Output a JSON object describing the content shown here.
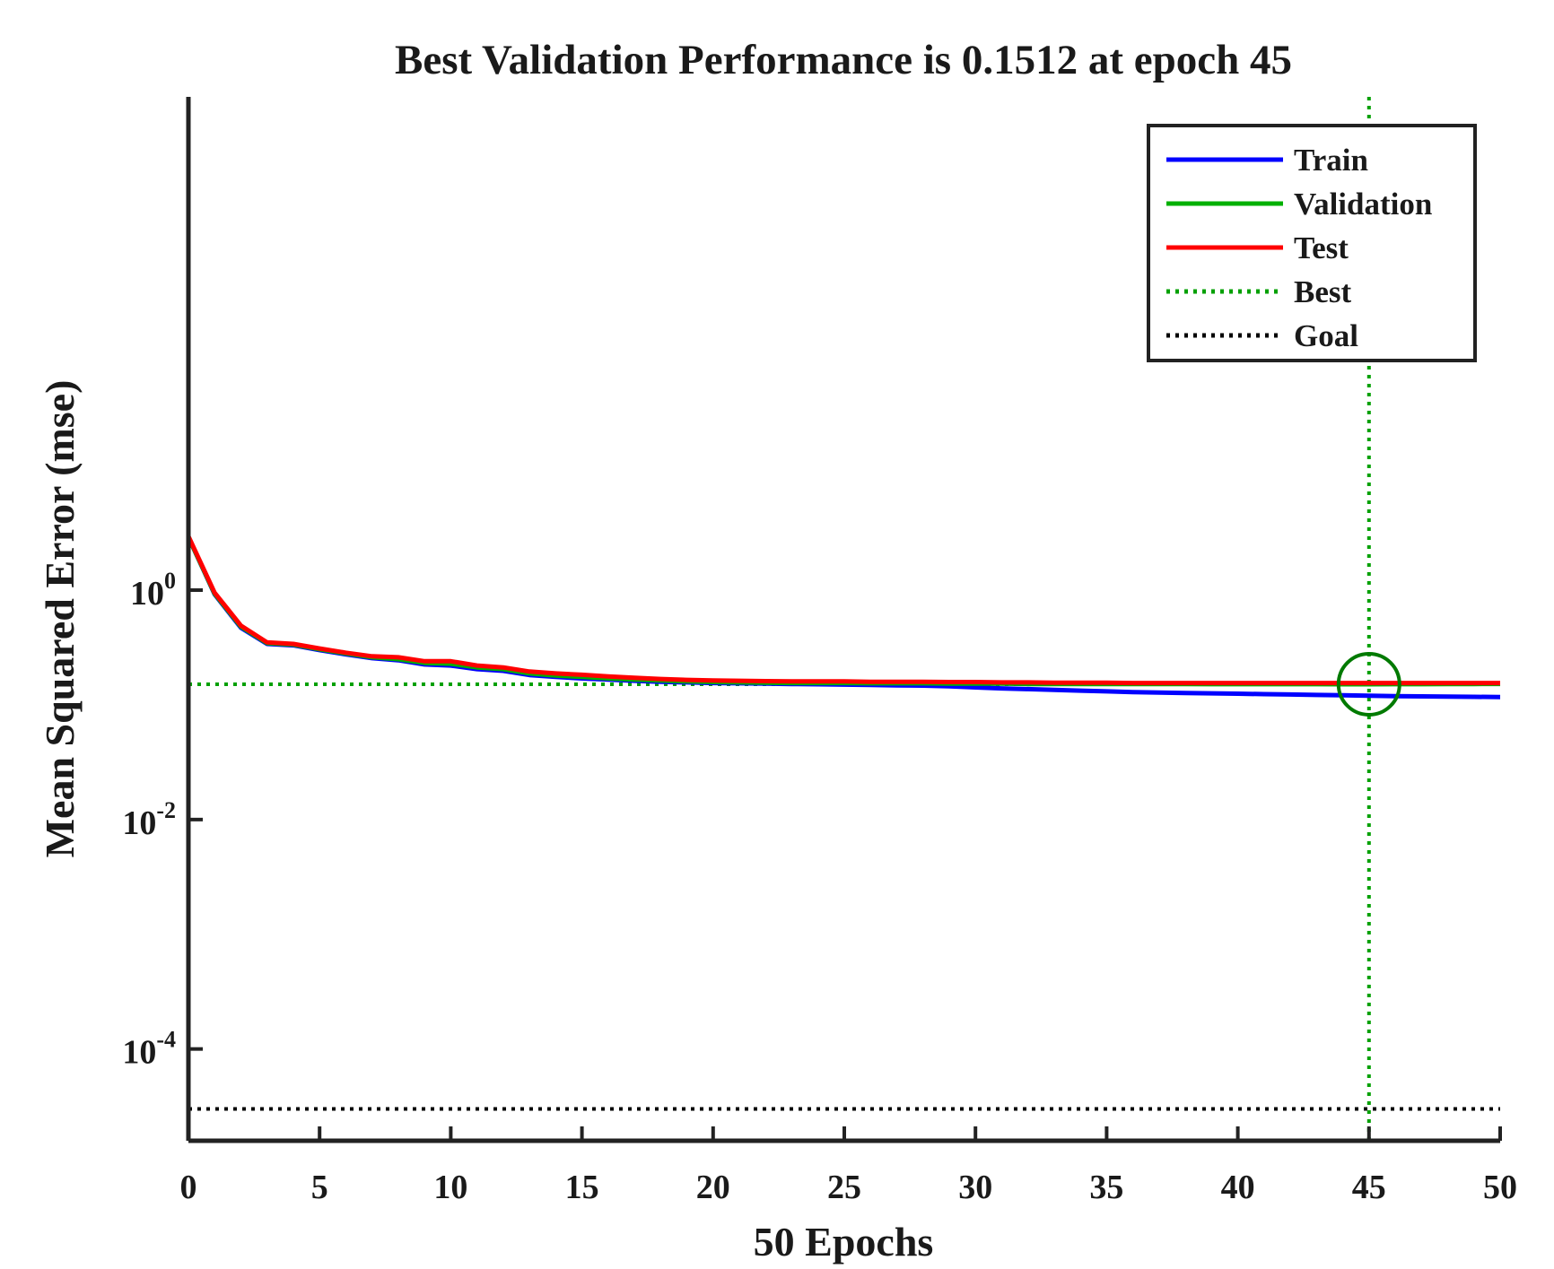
{
  "chart_data": {
    "type": "line",
    "title": "Best Validation Performance is 0.1512 at epoch 45",
    "xlabel": "50 Epochs",
    "ylabel": "Mean Squared Error  (mse)",
    "xlim": [
      0,
      50
    ],
    "ylim_log10": [
      -4.8,
      4.3
    ],
    "yscale": "log",
    "x_ticks": [
      0,
      5,
      10,
      15,
      20,
      25,
      30,
      35,
      40,
      45,
      50
    ],
    "x_tick_labels": [
      "0",
      "5",
      "10",
      "15",
      "20",
      "25",
      "30",
      "35",
      "40",
      "45",
      "50"
    ],
    "y_ticks": [
      {
        "base": "10",
        "exp": "0",
        "value": 1
      },
      {
        "base": "10",
        "exp": "-2",
        "value": 0.01
      },
      {
        "base": "10",
        "exp": "-4",
        "value": 0.0001
      }
    ],
    "series": [
      {
        "name": "Train",
        "color": "#0000ff",
        "style": "solid",
        "x": [
          0,
          1,
          2,
          3,
          4,
          5,
          6,
          7,
          8,
          9,
          10,
          11,
          12,
          13,
          14,
          15,
          16,
          17,
          18,
          19,
          20,
          21,
          22,
          23,
          24,
          25,
          26,
          27,
          28,
          29,
          30,
          31,
          32,
          33,
          34,
          35,
          36,
          37,
          38,
          39,
          40,
          41,
          42,
          43,
          44,
          45,
          46,
          47,
          48,
          49,
          50
        ],
        "y": [
          2.9,
          0.92,
          0.47,
          0.34,
          0.33,
          0.3,
          0.275,
          0.255,
          0.245,
          0.225,
          0.22,
          0.205,
          0.198,
          0.182,
          0.175,
          0.17,
          0.166,
          0.162,
          0.159,
          0.157,
          0.155,
          0.154,
          0.153,
          0.152,
          0.151,
          0.15,
          0.149,
          0.148,
          0.147,
          0.145,
          0.142,
          0.139,
          0.137,
          0.135,
          0.133,
          0.131,
          0.129,
          0.128,
          0.127,
          0.126,
          0.125,
          0.124,
          0.123,
          0.122,
          0.121,
          0.12,
          0.119,
          0.1185,
          0.118,
          0.1175,
          0.117
        ]
      },
      {
        "name": "Validation",
        "color": "#00b000",
        "style": "solid",
        "x": [
          0,
          1,
          2,
          3,
          4,
          5,
          6,
          7,
          8,
          9,
          10,
          11,
          12,
          13,
          14,
          15,
          16,
          17,
          18,
          19,
          20,
          21,
          22,
          23,
          24,
          25,
          26,
          27,
          28,
          29,
          30,
          31,
          32,
          33,
          34,
          35,
          36,
          37,
          38,
          39,
          40,
          41,
          42,
          43,
          44,
          45,
          46,
          47,
          48,
          49,
          50
        ],
        "y": [
          2.9,
          0.93,
          0.48,
          0.345,
          0.335,
          0.305,
          0.28,
          0.26,
          0.25,
          0.232,
          0.228,
          0.212,
          0.205,
          0.188,
          0.18,
          0.175,
          0.17,
          0.166,
          0.163,
          0.16,
          0.158,
          0.157,
          0.156,
          0.155,
          0.155,
          0.155,
          0.154,
          0.154,
          0.154,
          0.153,
          0.153,
          0.153,
          0.152,
          0.152,
          0.152,
          0.152,
          0.152,
          0.152,
          0.152,
          0.1515,
          0.1515,
          0.1515,
          0.1514,
          0.1513,
          0.1512,
          0.1512,
          0.1513,
          0.1515,
          0.1517,
          0.152,
          0.1522
        ]
      },
      {
        "name": "Test",
        "color": "#ff0000",
        "style": "solid",
        "x": [
          0,
          1,
          2,
          3,
          4,
          5,
          6,
          7,
          8,
          9,
          10,
          11,
          12,
          13,
          14,
          15,
          16,
          17,
          18,
          19,
          20,
          21,
          22,
          23,
          24,
          25,
          26,
          27,
          28,
          29,
          30,
          31,
          32,
          33,
          34,
          35,
          36,
          37,
          38,
          39,
          40,
          41,
          42,
          43,
          44,
          45,
          46,
          47,
          48,
          49,
          50
        ],
        "y": [
          2.95,
          0.95,
          0.49,
          0.35,
          0.34,
          0.31,
          0.285,
          0.265,
          0.26,
          0.24,
          0.24,
          0.22,
          0.212,
          0.195,
          0.188,
          0.183,
          0.177,
          0.172,
          0.168,
          0.165,
          0.163,
          0.162,
          0.161,
          0.16,
          0.16,
          0.16,
          0.159,
          0.159,
          0.159,
          0.158,
          0.158,
          0.157,
          0.157,
          0.156,
          0.156,
          0.156,
          0.155,
          0.155,
          0.155,
          0.155,
          0.155,
          0.155,
          0.155,
          0.155,
          0.155,
          0.155,
          0.155,
          0.155,
          0.155,
          0.155,
          0.155
        ]
      }
    ],
    "best": {
      "name": "Best",
      "epoch": 45,
      "value": 0.1512,
      "color": "#00a000",
      "style": "dotted"
    },
    "goal": {
      "name": "Goal",
      "value": 3e-05,
      "color": "#000000",
      "style": "dotted"
    },
    "legend": {
      "position": "top-right",
      "entries": [
        "Train",
        "Validation",
        "Test",
        "Best",
        "Goal"
      ]
    },
    "grid": false
  }
}
